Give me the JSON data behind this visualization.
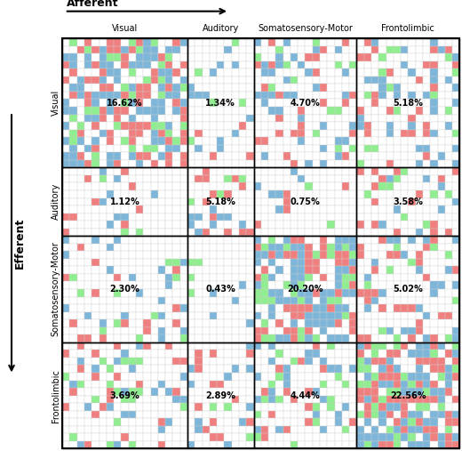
{
  "title_top": "Afferent",
  "title_left": "Efferent",
  "col_labels": [
    "Visual",
    "Auditory",
    "Somatosensory-Motor",
    "Frontolimbic"
  ],
  "row_labels": [
    "Visual",
    "Auditory",
    "Somatosensory-Motor",
    "Frontolimbic"
  ],
  "percentages": [
    [
      "16.62%",
      "1.34%",
      "4.70%",
      "5.18%"
    ],
    [
      "1.12%",
      "5.18%",
      "0.75%",
      "3.58%"
    ],
    [
      "2.30%",
      "0.43%",
      "20.20%",
      "5.02%"
    ],
    [
      "3.69%",
      "2.89%",
      "4.44%",
      "22.56%"
    ]
  ],
  "pct_matrix": [
    [
      16.62,
      1.34,
      4.7,
      5.18
    ],
    [
      1.12,
      5.18,
      0.75,
      3.58
    ],
    [
      2.3,
      0.43,
      20.2,
      5.02
    ],
    [
      3.69,
      2.89,
      4.44,
      22.56
    ]
  ],
  "colors": {
    "white": "#FFFFFF",
    "red": "#F08080",
    "blue": "#7EB6D9",
    "green": "#90EE90",
    "grid": "#D0D0D0",
    "border": "#000000"
  },
  "block_sizes": [
    17,
    9,
    14,
    14
  ],
  "seed": 42,
  "fig_width": 5.2,
  "fig_height": 5.07,
  "dpi": 100
}
